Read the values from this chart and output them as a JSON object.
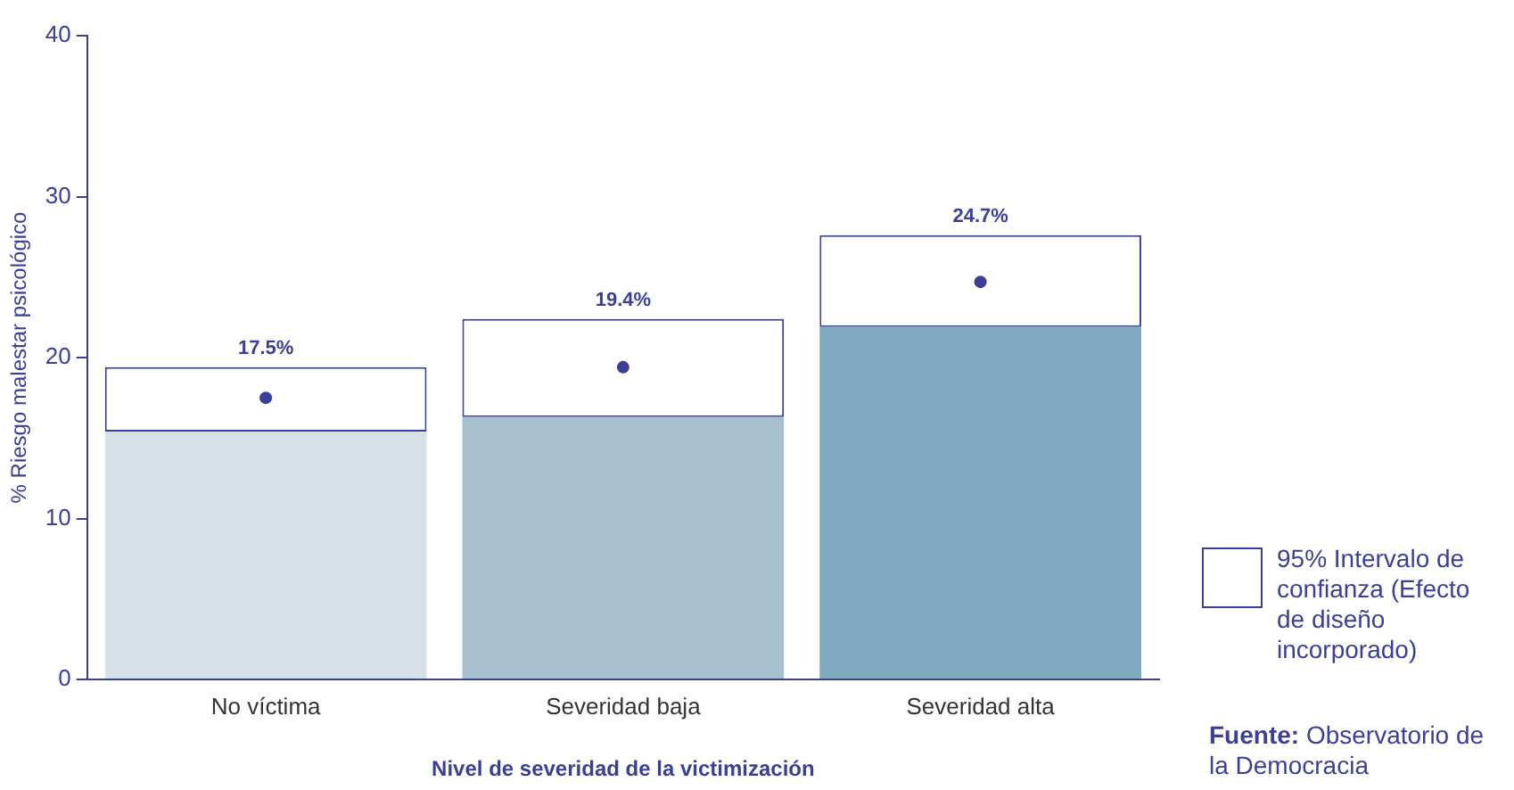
{
  "chart_data": {
    "type": "bar",
    "xlabel": "Nivel de severidad de la victimización",
    "ylabel": "% Riesgo malestar psicológico",
    "categories": [
      "No víctima",
      "Severidad baja",
      "Severidad alta"
    ],
    "ylim": [
      0,
      40
    ],
    "yticks": [
      0,
      10,
      20,
      30,
      40
    ],
    "grid": false,
    "stacked": true,
    "legend": "bottom right",
    "marker": "circle",
    "annotations": [
      "Fuente: Observatorio de la Democracia"
    ],
    "series": [
      {
        "colors": [
          "#d9e1e8",
          "#a5bfcc",
          "#7ea9bf"
        ],
        "values": [
          15.4,
          16.3,
          21.9
        ]
      },
      {
        "name": "95% Intervalo de confianza (Efecto de diseño incorporado)",
        "color": "#ffffff",
        "values": [
          4.0,
          6.1,
          5.7
        ]
      },
      {
        "type": "scatter",
        "x": [
          "No víctima",
          "Severidad baja",
          "Severidad alta"
        ],
        "color": "#3a3f98",
        "values": [
          17.5,
          19.4,
          24.7
        ],
        "value_labels": [
          "17.5%",
          "19.4%",
          "24.7%"
        ]
      }
    ]
  }
}
